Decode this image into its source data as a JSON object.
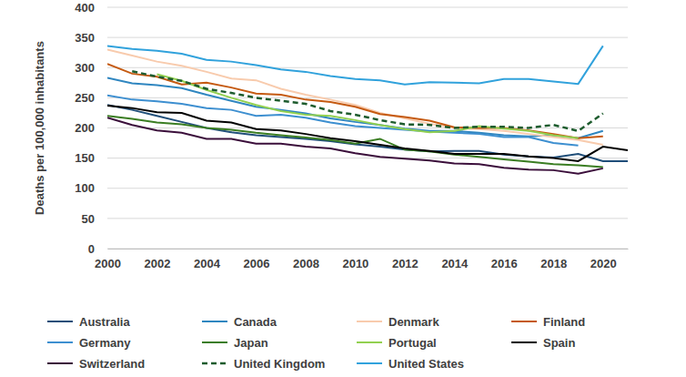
{
  "chart_data": {
    "type": "line",
    "y_label": "Deaths per 100,000 inhabitants",
    "x": [
      2000,
      2001,
      2002,
      2003,
      2004,
      2005,
      2006,
      2007,
      2008,
      2009,
      2010,
      2011,
      2012,
      2013,
      2014,
      2015,
      2016,
      2017,
      2018,
      2019,
      2020,
      2021
    ],
    "xlim": [
      2000,
      2021
    ],
    "xticks": [
      2000,
      2002,
      2004,
      2006,
      2008,
      2010,
      2012,
      2014,
      2016,
      2018,
      2020
    ],
    "ylim": [
      0,
      400
    ],
    "yticks": [
      0,
      50,
      100,
      150,
      200,
      250,
      300,
      350,
      400
    ],
    "grid": true,
    "legend": "bottom",
    "series": [
      {
        "name": "Australia",
        "color": "#1f4e79",
        "line_style": "solid",
        "values": [
          238,
          230,
          220,
          210,
          200,
          193,
          188,
          185,
          182,
          178,
          173,
          169,
          164,
          161,
          162,
          162,
          156,
          153,
          151,
          157,
          145,
          145
        ]
      },
      {
        "name": "Canada",
        "color": "#2f86c0",
        "line_style": "solid",
        "values": [
          283,
          274,
          271,
          266,
          255,
          245,
          235,
          230,
          224,
          216,
          210,
          205,
          199,
          195,
          195,
          192,
          188,
          186,
          188,
          183,
          195,
          null
        ]
      },
      {
        "name": "Denmark",
        "color": "#f8cbad",
        "line_style": "solid",
        "values": [
          330,
          320,
          310,
          303,
          293,
          282,
          279,
          265,
          255,
          247,
          238,
          225,
          216,
          207,
          200,
          198,
          195,
          190,
          185,
          180,
          172,
          null
        ]
      },
      {
        "name": "Finland",
        "color": "#c55a11",
        "line_style": "solid",
        "values": [
          306,
          290,
          285,
          272,
          275,
          267,
          257,
          255,
          247,
          243,
          235,
          223,
          218,
          212,
          201,
          200,
          200,
          196,
          190,
          183,
          186,
          null
        ]
      },
      {
        "name": "Germany",
        "color": "#3d8fd0",
        "line_style": "solid",
        "values": [
          254,
          247,
          244,
          240,
          233,
          230,
          220,
          222,
          217,
          209,
          203,
          200,
          197,
          194,
          192,
          190,
          185,
          185,
          175,
          171,
          null,
          null
        ]
      },
      {
        "name": "Japan",
        "color": "#3a7d22",
        "line_style": "solid",
        "values": [
          220,
          215,
          209,
          206,
          200,
          197,
          192,
          188,
          184,
          180,
          174,
          182,
          164,
          161,
          156,
          152,
          148,
          144,
          140,
          138,
          135,
          null
        ]
      },
      {
        "name": "Portugal",
        "color": "#92d050",
        "line_style": "solid",
        "values": [
          null,
          null,
          289,
          278,
          263,
          250,
          238,
          228,
          222,
          220,
          213,
          205,
          198,
          193,
          195,
          203,
          199,
          195,
          188,
          183,
          null,
          null
        ]
      },
      {
        "name": "Spain",
        "color": "#000000",
        "line_style": "solid",
        "values": [
          237,
          233,
          226,
          225,
          212,
          209,
          198,
          196,
          190,
          183,
          178,
          172,
          166,
          162,
          157,
          157,
          157,
          153,
          150,
          145,
          169,
          163
        ]
      },
      {
        "name": "Switzerland",
        "color": "#3b0f3b",
        "line_style": "solid",
        "values": [
          217,
          205,
          196,
          192,
          182,
          182,
          174,
          174,
          169,
          166,
          158,
          152,
          149,
          146,
          141,
          140,
          134,
          131,
          130,
          124,
          133,
          null
        ]
      },
      {
        "name": "United Kingdom",
        "color": "#1e5c2e",
        "line_style": "dashed",
        "values": [
          null,
          294,
          285,
          278,
          265,
          258,
          250,
          245,
          240,
          228,
          222,
          213,
          206,
          205,
          200,
          202,
          202,
          200,
          205,
          195,
          224,
          null
        ]
      },
      {
        "name": "United States",
        "color": "#31a2dc",
        "line_style": "solid",
        "values": [
          336,
          331,
          328,
          323,
          313,
          310,
          304,
          297,
          293,
          286,
          281,
          279,
          272,
          276,
          275,
          274,
          281,
          281,
          277,
          273,
          336,
          null
        ]
      }
    ]
  }
}
